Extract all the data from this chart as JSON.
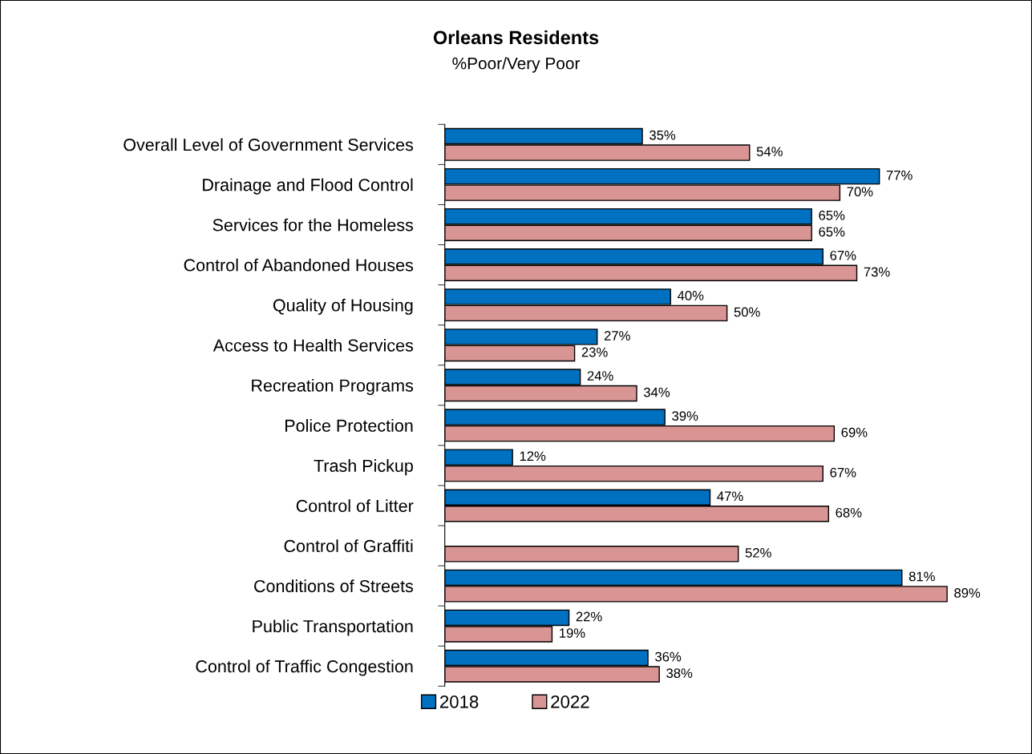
{
  "chart_data": {
    "type": "bar",
    "orientation": "horizontal",
    "title": "Orleans Residents",
    "subtitle": "%Poor/Very Poor",
    "categories": [
      "Overall Level of Government Services",
      "Drainage and Flood Control",
      "Services for the Homeless",
      "Control of Abandoned Houses",
      "Quality of Housing",
      "Access to Health Services",
      "Recreation Programs",
      "Police Protection",
      "Trash Pickup",
      "Control of Litter",
      "Control of Graffiti",
      "Conditions of Streets",
      "Public Transportation",
      "Control of Traffic Congestion"
    ],
    "series": [
      {
        "name": "2018",
        "color": "#0070c0",
        "values": [
          35,
          77,
          65,
          67,
          40,
          27,
          24,
          39,
          12,
          47,
          null,
          81,
          22,
          36
        ],
        "value_labels": [
          "35%",
          "77%",
          "65%",
          "67%",
          "40%",
          "27%",
          "24%",
          "39%",
          "12%",
          "47%",
          null,
          "81%",
          "22%",
          "36%"
        ]
      },
      {
        "name": "2022",
        "color": "#d99594",
        "values": [
          54,
          70,
          65,
          73,
          50,
          23,
          34,
          69,
          67,
          68,
          52,
          89,
          19,
          38
        ],
        "value_labels": [
          "54%",
          "70%",
          "65%",
          "73%",
          "50%",
          "23%",
          "34%",
          "69%",
          "67%",
          "68%",
          "52%",
          "89%",
          "19%",
          "38%"
        ]
      }
    ],
    "legend": "bottom",
    "grid": false
  }
}
